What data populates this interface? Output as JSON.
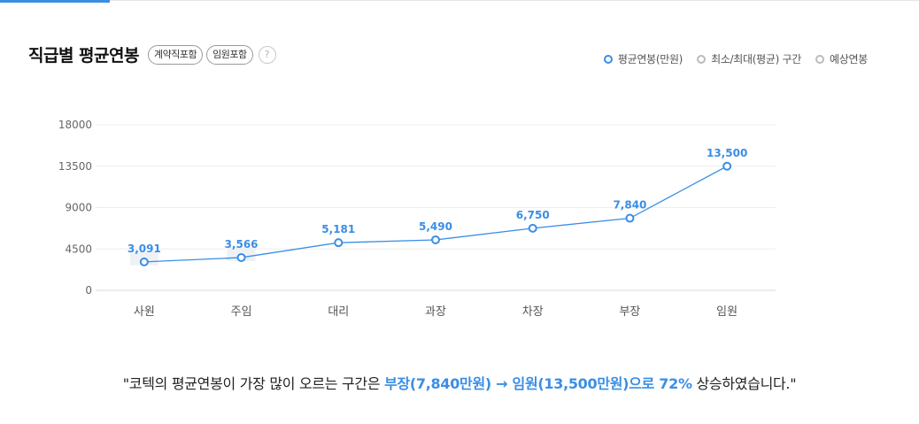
{
  "header": {
    "title": "직급별 평균연봉",
    "badges": [
      "계약직포함",
      "임원포함"
    ],
    "help_icon": "?"
  },
  "legend": [
    {
      "label": "평균연봉(만원)",
      "color": "#3a8ee6",
      "icon": "circle-outline-icon"
    },
    {
      "label": "최소/최대(평균) 구간",
      "color": "#bbbbbb",
      "icon": "circle-outline-icon"
    },
    {
      "label": "예상연봉",
      "color": "#bbbbbb",
      "icon": "circle-outline-icon"
    }
  ],
  "summary": {
    "prefix": "\"코텍의 평균연봉이 가장 많이 오르는 구간은 ",
    "from": "부장(7,840만원)",
    "arrow": " → ",
    "to": "임원(13,500만원)으로 72%",
    "suffix": " 상승하였습니다.\""
  },
  "chart_data": {
    "type": "line",
    "categories": [
      "사원",
      "주임",
      "대리",
      "과장",
      "차장",
      "부장",
      "임원"
    ],
    "series": [
      {
        "values": [
          3091,
          3566,
          5181,
          5490,
          6750,
          7840,
          13500
        ],
        "labels": [
          "3,091",
          "3,566",
          "5,181",
          "5,490",
          "6,750",
          "7,840",
          "13,500"
        ],
        "color": "#3a8ee6"
      }
    ],
    "yticks": [
      "0",
      "4500",
      "9000",
      "13500",
      "18000"
    ],
    "ylim": [
      0,
      18000
    ],
    "grid": true,
    "legend_position": "top-right"
  }
}
